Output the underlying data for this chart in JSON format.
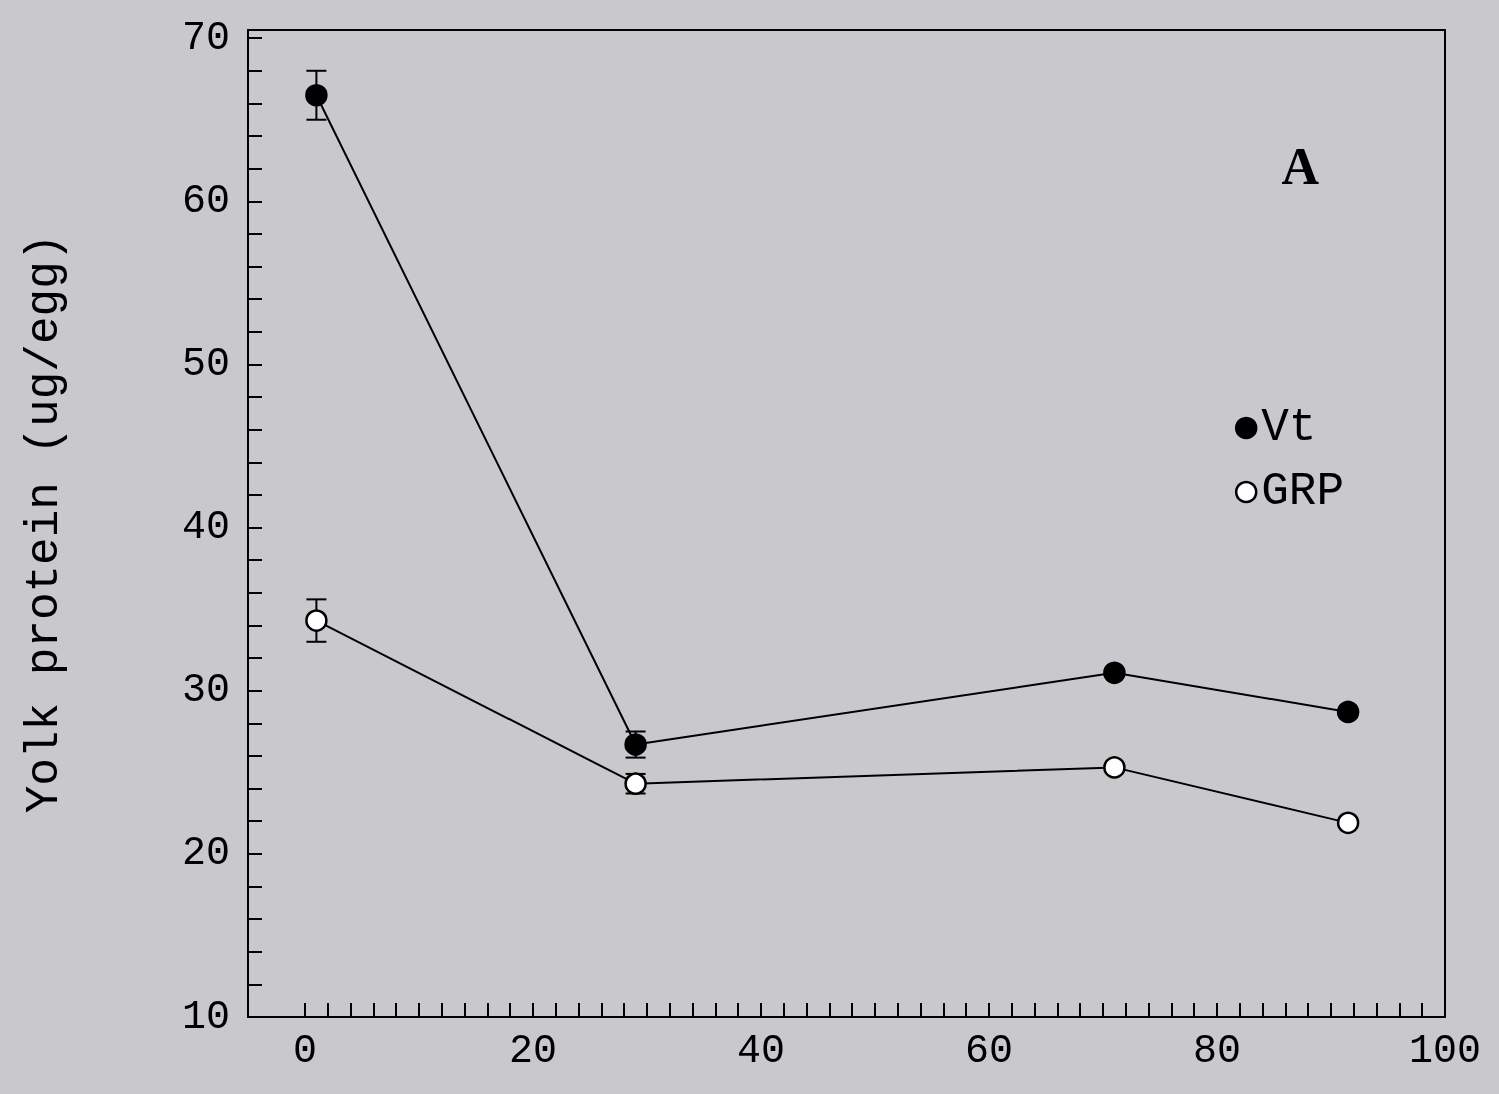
{
  "chart_data": {
    "type": "line",
    "ylabel": "Yolk protein (ug/egg)",
    "annotations": [
      "A"
    ],
    "xlim": [
      -5,
      100
    ],
    "ylim": [
      10,
      70.5
    ],
    "xticks": [
      0,
      {
        "value": 2,
        "label": null
      },
      {
        "value": 4,
        "label": null
      },
      {
        "value": 6,
        "label": null
      },
      {
        "value": 8,
        "label": null
      },
      {
        "value": 10,
        "label": null
      },
      {
        "value": 12,
        "label": null
      },
      {
        "value": 14,
        "label": null
      },
      {
        "value": 16,
        "label": null
      },
      {
        "value": 18,
        "label": null
      },
      20,
      {
        "value": 22,
        "label": null
      },
      {
        "value": 24,
        "label": null
      },
      {
        "value": 26,
        "label": null
      },
      {
        "value": 28,
        "label": null
      },
      {
        "value": 30,
        "label": null
      },
      {
        "value": 32,
        "label": null
      },
      {
        "value": 34,
        "label": null
      },
      {
        "value": 36,
        "label": null
      },
      {
        "value": 38,
        "label": null
      },
      40,
      {
        "value": 42,
        "label": null
      },
      {
        "value": 44,
        "label": null
      },
      {
        "value": 46,
        "label": null
      },
      {
        "value": 48,
        "label": null
      },
      {
        "value": 50,
        "label": null
      },
      {
        "value": 52,
        "label": null
      },
      {
        "value": 54,
        "label": null
      },
      {
        "value": 56,
        "label": null
      },
      {
        "value": 58,
        "label": null
      },
      60,
      {
        "value": 62,
        "label": null
      },
      {
        "value": 64,
        "label": null
      },
      {
        "value": 66,
        "label": null
      },
      {
        "value": 68,
        "label": null
      },
      {
        "value": 70,
        "label": null
      },
      {
        "value": 72,
        "label": null
      },
      {
        "value": 74,
        "label": null
      },
      {
        "value": 76,
        "label": null
      },
      {
        "value": 78,
        "label": null
      },
      80,
      {
        "value": 82,
        "label": null
      },
      {
        "value": 84,
        "label": null
      },
      {
        "value": 86,
        "label": null
      },
      {
        "value": 88,
        "label": null
      },
      {
        "value": 90,
        "label": null
      },
      {
        "value": 92,
        "label": null
      },
      {
        "value": 94,
        "label": null
      },
      {
        "value": 96,
        "label": null
      },
      {
        "value": 98,
        "label": null
      },
      100
    ],
    "yticks": [
      10,
      {
        "value": 12,
        "label": null
      },
      {
        "value": 14,
        "label": null
      },
      {
        "value": 16,
        "label": null
      },
      {
        "value": 18,
        "label": null
      },
      20,
      {
        "value": 22,
        "label": null
      },
      {
        "value": 24,
        "label": null
      },
      {
        "value": 26,
        "label": null
      },
      {
        "value": 28,
        "label": null
      },
      30,
      {
        "value": 32,
        "label": null
      },
      {
        "value": 34,
        "label": null
      },
      {
        "value": 36,
        "label": null
      },
      {
        "value": 38,
        "label": null
      },
      40,
      {
        "value": 42,
        "label": null
      },
      {
        "value": 44,
        "label": null
      },
      {
        "value": 46,
        "label": null
      },
      {
        "value": 48,
        "label": null
      },
      50,
      {
        "value": 52,
        "label": null
      },
      {
        "value": 54,
        "label": null
      },
      {
        "value": 56,
        "label": null
      },
      {
        "value": 58,
        "label": null
      },
      60,
      {
        "value": 62,
        "label": null
      },
      {
        "value": 64,
        "label": null
      },
      {
        "value": 66,
        "label": null
      },
      {
        "value": 68,
        "label": null
      },
      70
    ],
    "grid": false,
    "legend": "top right",
    "marker": "circle",
    "line_style": "solid",
    "series": [
      {
        "name": "Vt",
        "color": "#000000",
        "x": [
          1,
          29,
          71,
          91.5
        ],
        "values": [
          66.5,
          26.7,
          31.1,
          28.7
        ],
        "errors": [
          1.5,
          0.8,
          null,
          null
        ]
      },
      {
        "name": "GRP",
        "color": "#000000",
        "x": [
          1,
          29,
          71,
          91.5
        ],
        "values": [
          34.3,
          24.3,
          25.3,
          21.9
        ],
        "errors": [
          1.3,
          0.6,
          null,
          null
        ]
      }
    ]
  }
}
